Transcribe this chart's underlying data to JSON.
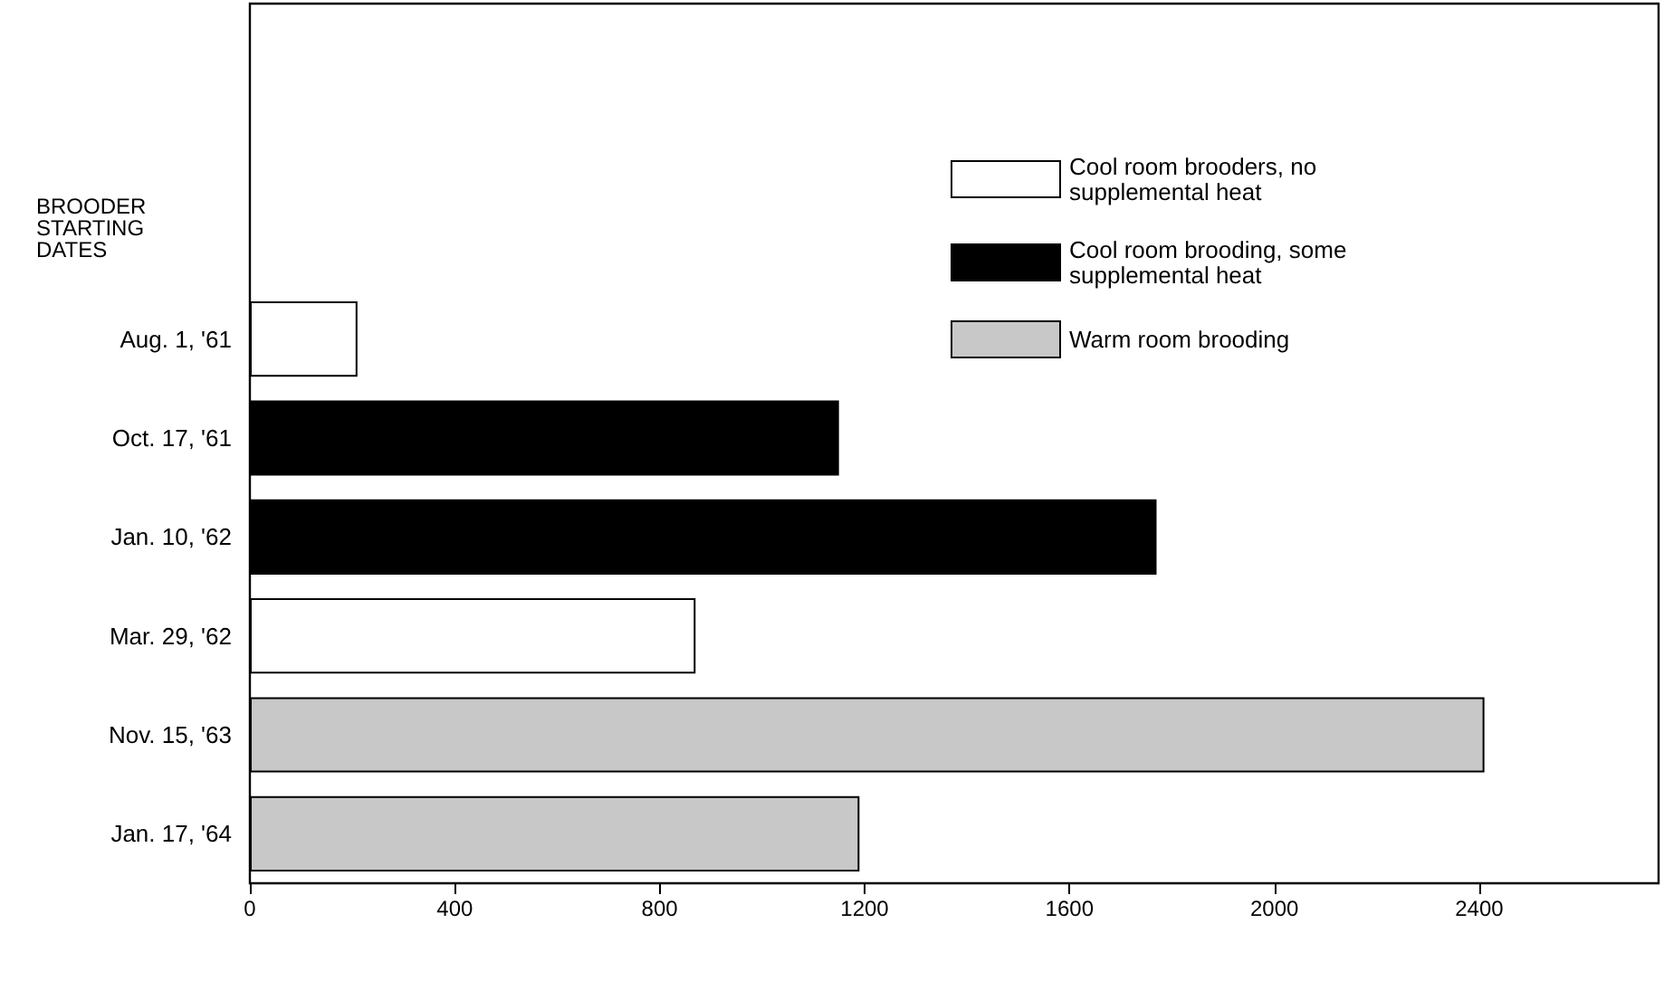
{
  "chart_data": {
    "type": "bar",
    "orientation": "horizontal",
    "ylabel": "BROODER STARTING DATES",
    "categories": [
      "Aug. 1, '61",
      "Oct. 17, '61",
      "Jan. 10, '62",
      "Mar. 29, '62",
      "Nov. 15, '63",
      "Jan. 17, '64"
    ],
    "series": [
      {
        "name": "Cool room brooders, no supplemental heat",
        "color": "#ffffff",
        "values": [
          210,
          null,
          null,
          870,
          null,
          null
        ]
      },
      {
        "name": "Cool room brooding, some supplemental heat",
        "color": "#000000",
        "values": [
          null,
          1150,
          1770,
          null,
          null,
          null
        ]
      },
      {
        "name": "Warm room brooding",
        "color": "#c8c8c8",
        "values": [
          null,
          null,
          null,
          null,
          2410,
          1190
        ]
      }
    ],
    "xlim": [
      0,
      2750
    ],
    "xticks": [
      0,
      400,
      800,
      1200,
      1600,
      2000,
      2400
    ],
    "grid": false,
    "legend": "top right"
  }
}
